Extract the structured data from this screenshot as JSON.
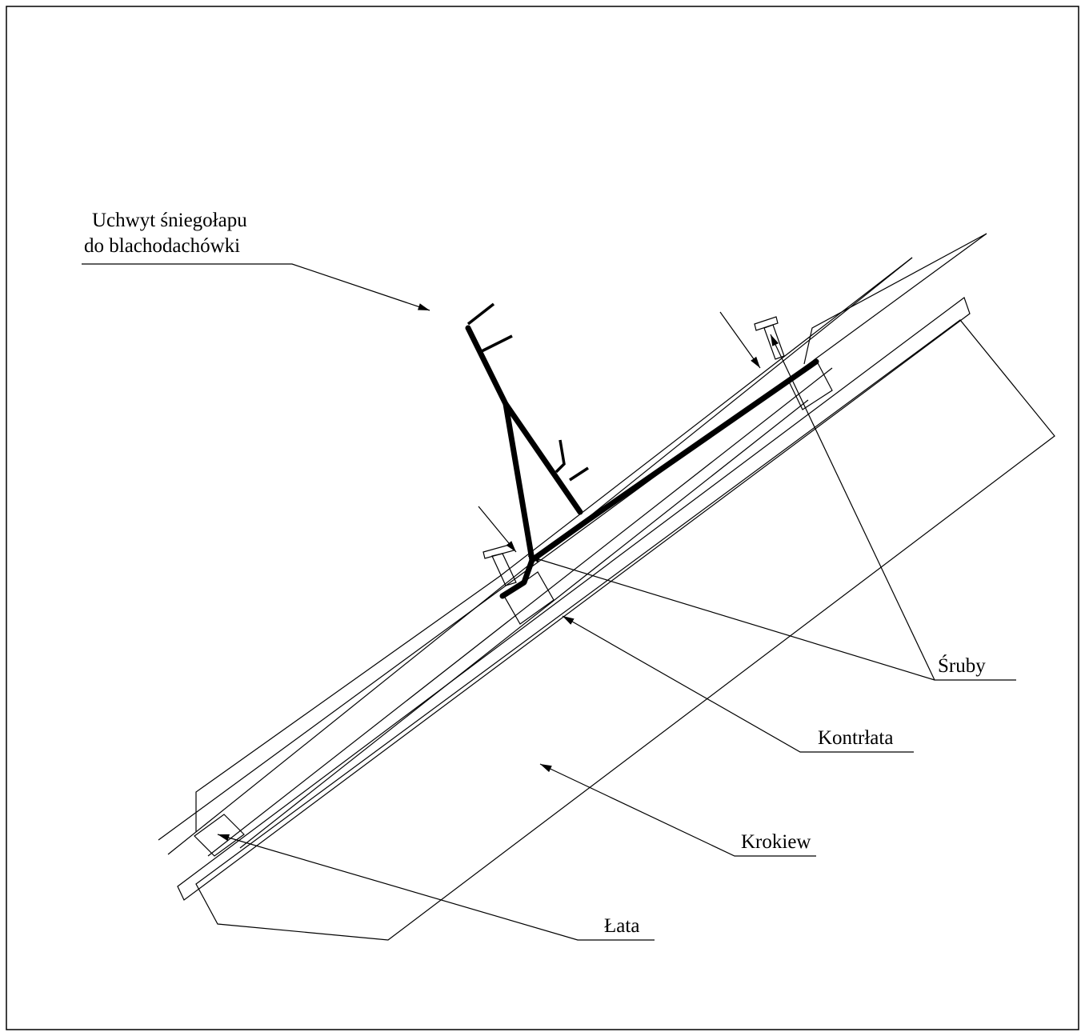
{
  "labels": {
    "snow_guard_line1": "Uchwyt śniegołapu",
    "snow_guard_line2": "do blachodachówki",
    "screws": "Śruby",
    "counter_batten": "Kontrłata",
    "rafter": "Krokiew",
    "batten": "Łata"
  }
}
